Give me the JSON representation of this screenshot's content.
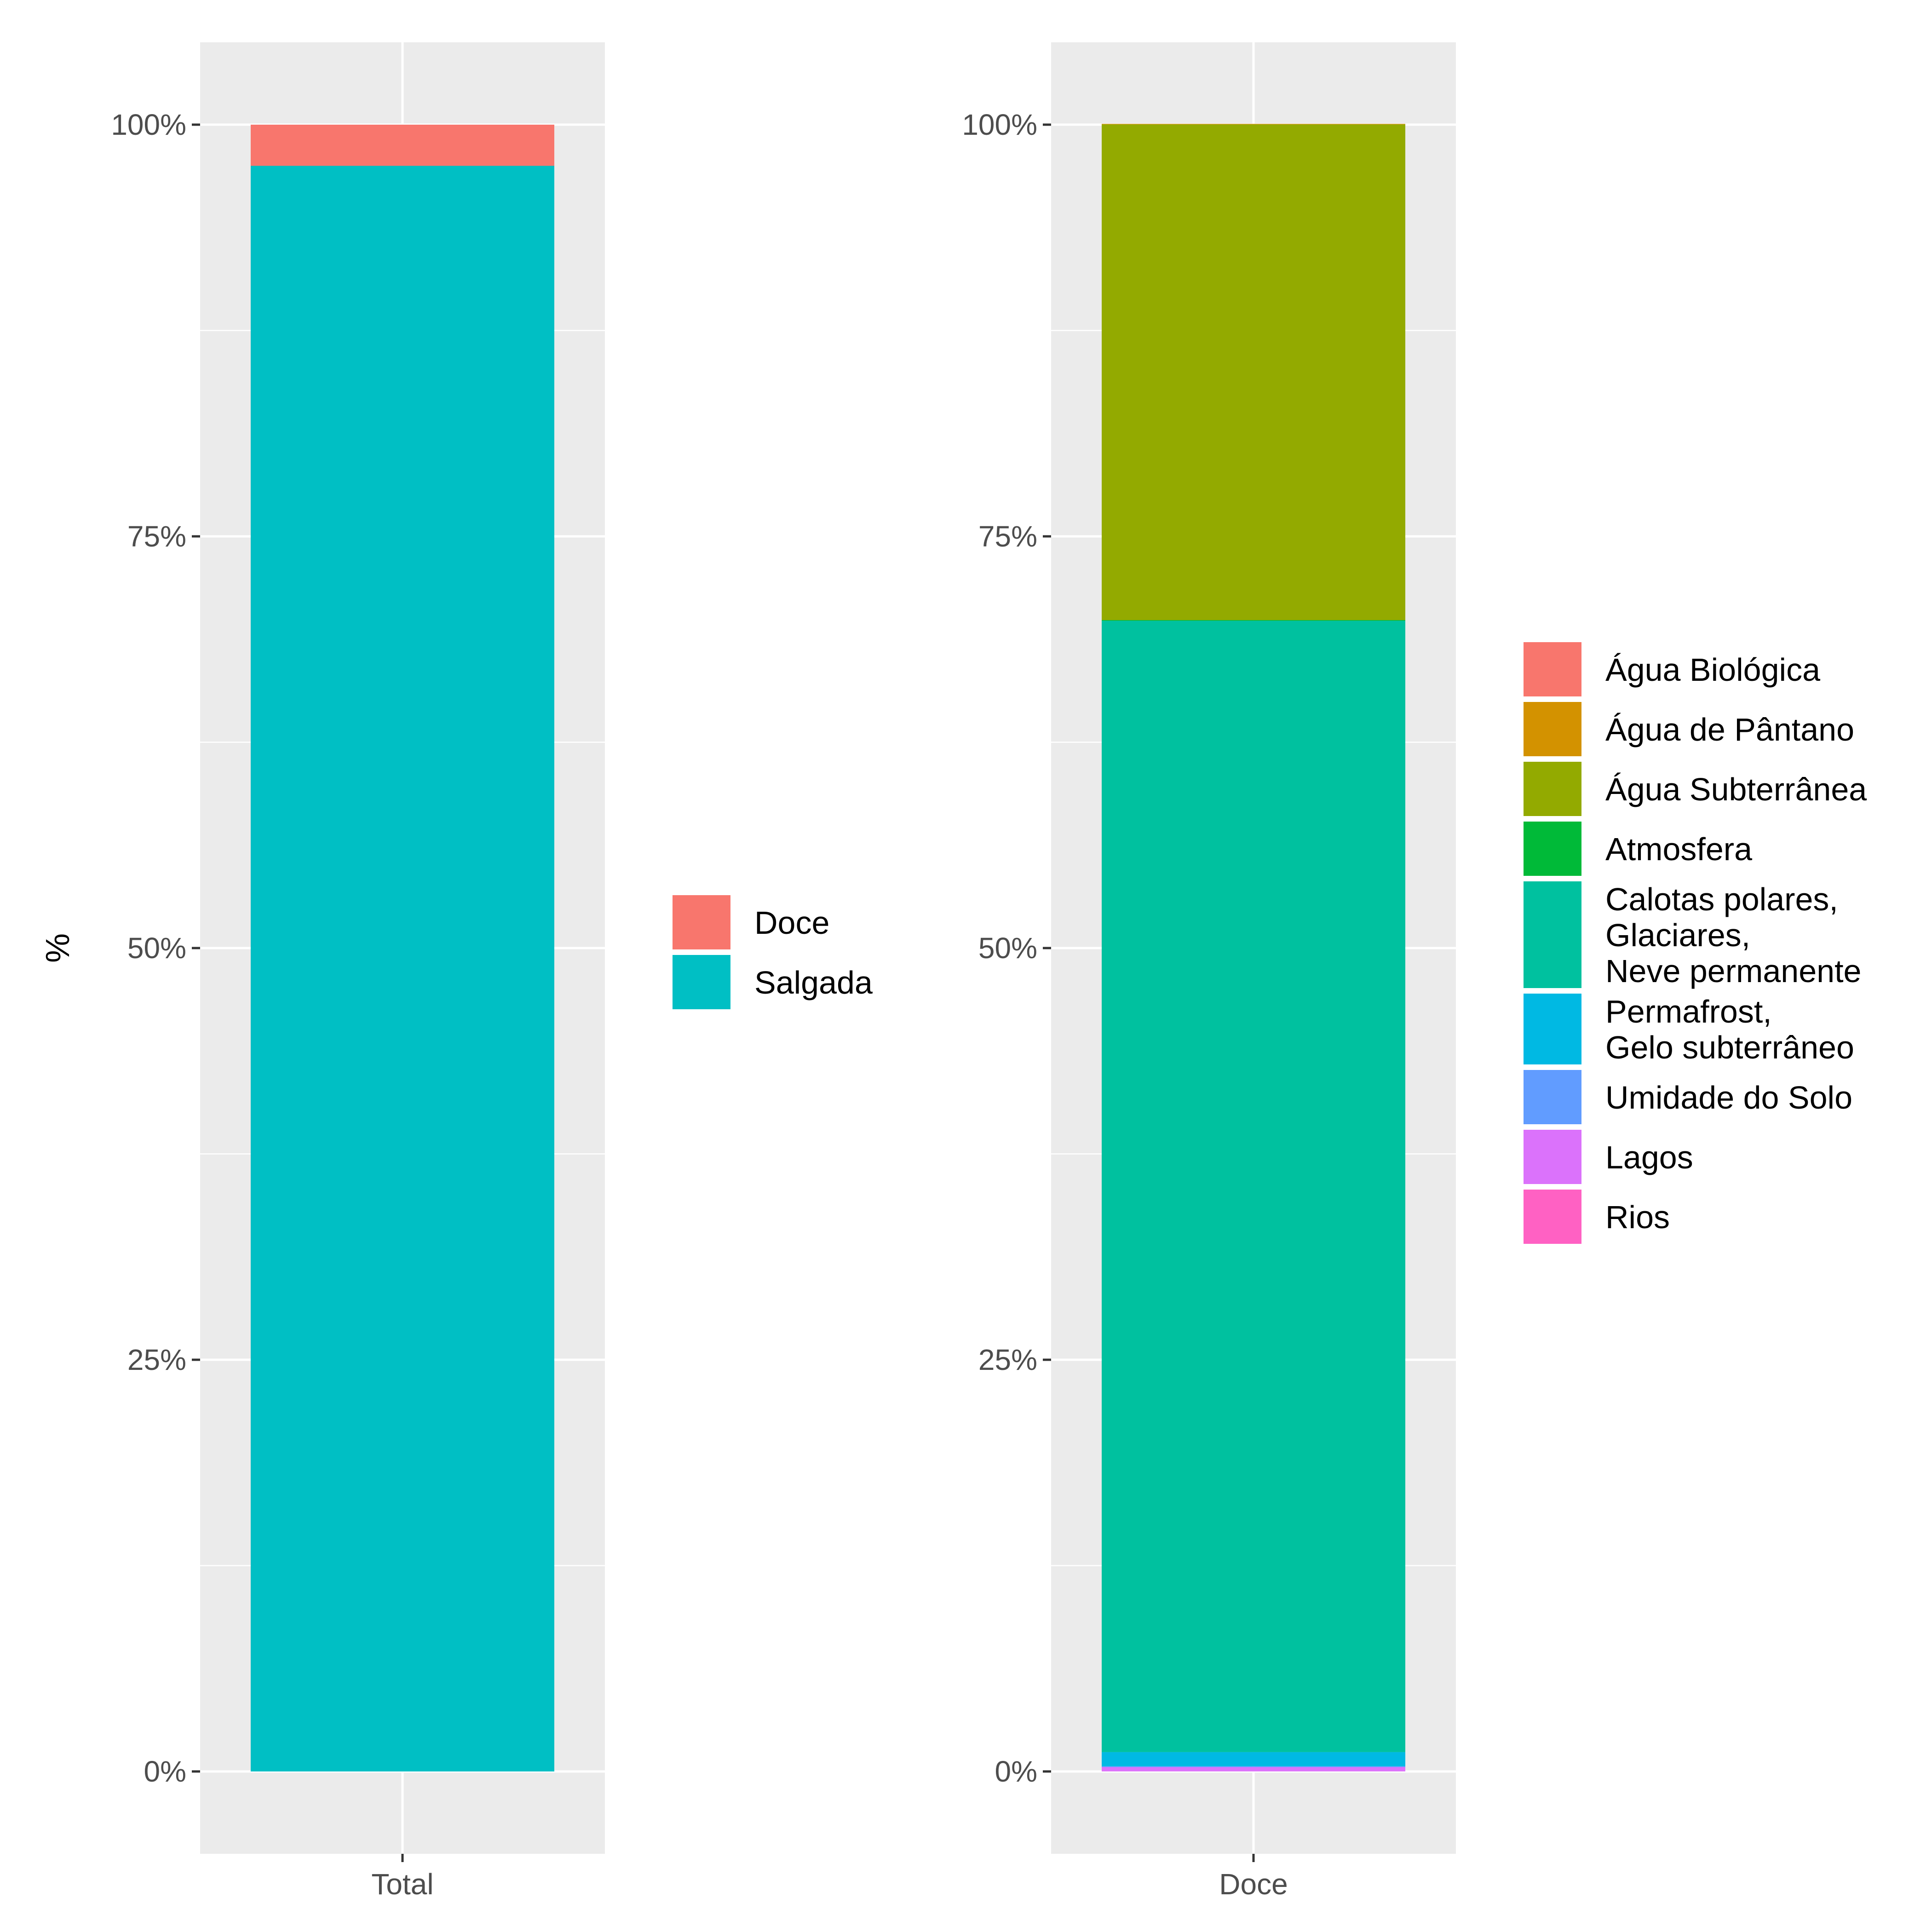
{
  "chart_data": [
    {
      "type": "bar",
      "stacked": true,
      "ylabel": "%",
      "xlabel": "",
      "ylim": [
        -0.05,
        1.05
      ],
      "yticks": [
        0,
        0.25,
        0.5,
        0.75,
        1.0
      ],
      "ytick_labels": [
        "0%",
        "25%",
        "50%",
        "75%",
        "100%"
      ],
      "categories": [
        "Total"
      ],
      "grid": true,
      "legend_position": "right",
      "series": [
        {
          "name": "Doce",
          "color": "#F8766D",
          "values": [
            0.025
          ]
        },
        {
          "name": "Salgada",
          "color": "#00BFC4",
          "values": [
            0.975
          ]
        }
      ]
    },
    {
      "type": "bar",
      "stacked": true,
      "ylabel": "",
      "xlabel": "",
      "ylim": [
        -0.05,
        1.05
      ],
      "yticks": [
        0,
        0.25,
        0.5,
        0.75,
        1.0
      ],
      "ytick_labels": [
        "0%",
        "25%",
        "50%",
        "75%",
        "100%"
      ],
      "categories": [
        "Doce"
      ],
      "grid": true,
      "legend_position": "right",
      "series": [
        {
          "name": "Água Biológica",
          "color": "#F8766D",
          "values": [
            3e-05
          ]
        },
        {
          "name": "Água de Pântano",
          "color": "#D39200",
          "values": [
            0.0003
          ]
        },
        {
          "name": "Água Subterrânea",
          "color": "#93AA00",
          "values": [
            0.301
          ]
        },
        {
          "name": "Atmosfera",
          "color": "#00BA38",
          "values": [
            0.0004
          ]
        },
        {
          "name": "Calotas polares,\nGlaciares,\nNeve permanente",
          "color": "#00C19F",
          "values": [
            0.687
          ]
        },
        {
          "name": "Permafrost,\nGelo subterrâneo",
          "color": "#00B9E3",
          "values": [
            0.0086
          ]
        },
        {
          "name": "Umidade do Solo",
          "color": "#619CFF",
          "values": [
            0.0005
          ]
        },
        {
          "name": "Lagos",
          "color": "#DB72FB",
          "values": [
            0.0026
          ]
        },
        {
          "name": "Rios",
          "color": "#FF61C3",
          "values": [
            6e-05
          ]
        }
      ]
    }
  ]
}
